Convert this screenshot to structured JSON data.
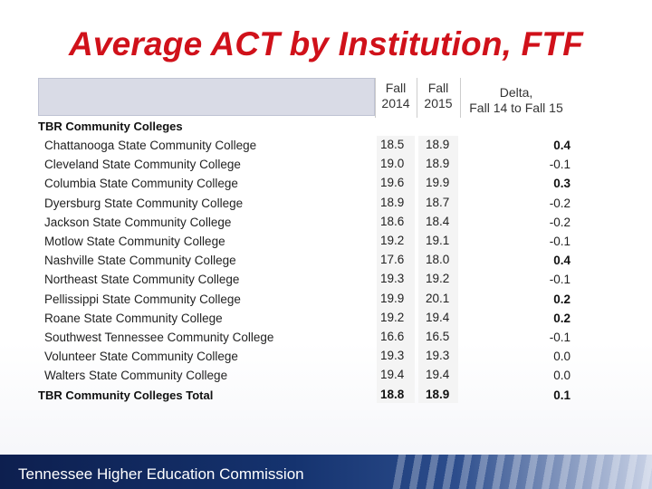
{
  "title": "Average ACT by Institution, FTF",
  "columns": {
    "fall2014": [
      "Fall",
      "2014"
    ],
    "fall2015": [
      "Fall",
      "2015"
    ],
    "delta": [
      "Delta,",
      "Fall 14 to Fall 15"
    ]
  },
  "section_label": "TBR Community Colleges",
  "rows": [
    {
      "name": "Chattanooga State Community College",
      "f14": "18.5",
      "f15": "18.9",
      "delta": "0.4",
      "delta_bold": true
    },
    {
      "name": "Cleveland State Community College",
      "f14": "19.0",
      "f15": "18.9",
      "delta": "-0.1",
      "delta_bold": false
    },
    {
      "name": "Columbia State Community College",
      "f14": "19.6",
      "f15": "19.9",
      "delta": "0.3",
      "delta_bold": true
    },
    {
      "name": "Dyersburg State Community College",
      "f14": "18.9",
      "f15": "18.7",
      "delta": "-0.2",
      "delta_bold": false
    },
    {
      "name": "Jackson State Community College",
      "f14": "18.6",
      "f15": "18.4",
      "delta": "-0.2",
      "delta_bold": false
    },
    {
      "name": "Motlow State Community College",
      "f14": "19.2",
      "f15": "19.1",
      "delta": "-0.1",
      "delta_bold": false
    },
    {
      "name": "Nashville State Community College",
      "f14": "17.6",
      "f15": "18.0",
      "delta": "0.4",
      "delta_bold": true
    },
    {
      "name": "Northeast State Community College",
      "f14": "19.3",
      "f15": "19.2",
      "delta": "-0.1",
      "delta_bold": false
    },
    {
      "name": "Pellissippi State Community College",
      "f14": "19.9",
      "f15": "20.1",
      "delta": "0.2",
      "delta_bold": true
    },
    {
      "name": "Roane State Community College",
      "f14": "19.2",
      "f15": "19.4",
      "delta": "0.2",
      "delta_bold": true
    },
    {
      "name": "Southwest Tennessee Community College",
      "f14": "16.6",
      "f15": "16.5",
      "delta": "-0.1",
      "delta_bold": false
    },
    {
      "name": "Volunteer State Community College",
      "f14": "19.3",
      "f15": "19.3",
      "delta": "0.0",
      "delta_bold": false
    },
    {
      "name": "Walters State Community College",
      "f14": "19.4",
      "f15": "19.4",
      "delta": "0.0",
      "delta_bold": false
    }
  ],
  "total": {
    "name": "TBR Community Colleges Total",
    "f14": "18.8",
    "f15": "18.9",
    "delta": "0.1"
  },
  "footer": "Tennessee Higher Education Commission",
  "colors": {
    "title": "#d0111a",
    "footer": "#15336f"
  }
}
